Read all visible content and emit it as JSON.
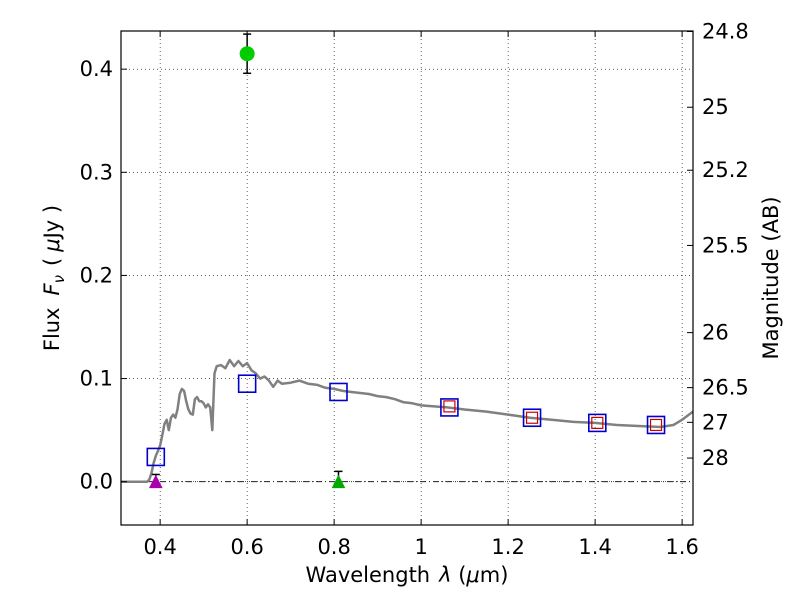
{
  "chart_data": {
    "type": "scatter",
    "xlabel_prefix": "Wavelength",
    "xlabel_var": "λ",
    "xlabel_unit_open": " (",
    "xlabel_unit_mu": "μ",
    "xlabel_unit_rest": "m)",
    "ylabel_prefix": "Flux",
    "ylabel_var": "F",
    "ylabel_sub": "ν",
    "ylabel_unit_open": "(",
    "ylabel_unit_mu": "μ",
    "ylabel_unit_rest": "Jy )",
    "y2label": "Magnitude (AB)",
    "xlim": [
      0.31,
      1.625
    ],
    "ylim": [
      -0.042,
      0.437
    ],
    "xticks": [
      {
        "value": 0.4,
        "label": "0.4"
      },
      {
        "value": 0.6,
        "label": "0.6"
      },
      {
        "value": 0.8,
        "label": "0.8"
      },
      {
        "value": 1.0,
        "label": "1"
      },
      {
        "value": 1.2,
        "label": "1.2"
      },
      {
        "value": 1.4,
        "label": "1.4"
      },
      {
        "value": 1.6,
        "label": "1.6"
      }
    ],
    "yticks": [
      {
        "value": 0.0,
        "label": "0.0"
      },
      {
        "value": 0.1,
        "label": "0.1"
      },
      {
        "value": 0.2,
        "label": "0.2"
      },
      {
        "value": 0.3,
        "label": "0.3"
      },
      {
        "value": 0.4,
        "label": "0.4"
      }
    ],
    "mag_ticks": [
      {
        "value": 24.8,
        "label": "24.8"
      },
      {
        "value": 25.0,
        "label": "25"
      },
      {
        "value": 25.2,
        "label": "25.2"
      },
      {
        "value": 25.5,
        "label": "25.5"
      },
      {
        "value": 26.0,
        "label": "26"
      },
      {
        "value": 26.5,
        "label": "26.5"
      },
      {
        "value": 27.0,
        "label": "27"
      },
      {
        "value": 28.0,
        "label": "28"
      }
    ],
    "grid": true,
    "colors": {
      "model": "#808080",
      "model_points": "#0000cc",
      "observed": "#cc0000",
      "detection": "#00cc00",
      "limit_green": "#00aa00",
      "limit_magenta": "#aa00aa"
    },
    "model_sed": [
      [
        0.31,
        0.0
      ],
      [
        0.36,
        0.0
      ],
      [
        0.37,
        0.0
      ],
      [
        0.375,
        0.002
      ],
      [
        0.38,
        0.008
      ],
      [
        0.385,
        0.018
      ],
      [
        0.39,
        0.025
      ],
      [
        0.395,
        0.03
      ],
      [
        0.4,
        0.035
      ],
      [
        0.405,
        0.045
      ],
      [
        0.41,
        0.056
      ],
      [
        0.415,
        0.06
      ],
      [
        0.42,
        0.05
      ],
      [
        0.425,
        0.062
      ],
      [
        0.43,
        0.065
      ],
      [
        0.435,
        0.062
      ],
      [
        0.44,
        0.07
      ],
      [
        0.445,
        0.085
      ],
      [
        0.45,
        0.09
      ],
      [
        0.455,
        0.088
      ],
      [
        0.46,
        0.078
      ],
      [
        0.465,
        0.07
      ],
      [
        0.47,
        0.066
      ],
      [
        0.475,
        0.065
      ],
      [
        0.48,
        0.08
      ],
      [
        0.485,
        0.082
      ],
      [
        0.49,
        0.078
      ],
      [
        0.495,
        0.078
      ],
      [
        0.5,
        0.076
      ],
      [
        0.505,
        0.072
      ],
      [
        0.51,
        0.075
      ],
      [
        0.515,
        0.072
      ],
      [
        0.52,
        0.05
      ],
      [
        0.525,
        0.105
      ],
      [
        0.53,
        0.112
      ],
      [
        0.54,
        0.113
      ],
      [
        0.55,
        0.11
      ],
      [
        0.56,
        0.118
      ],
      [
        0.57,
        0.112
      ],
      [
        0.58,
        0.117
      ],
      [
        0.59,
        0.112
      ],
      [
        0.6,
        0.115
      ],
      [
        0.61,
        0.108
      ],
      [
        0.62,
        0.105
      ],
      [
        0.63,
        0.1
      ],
      [
        0.64,
        0.102
      ],
      [
        0.65,
        0.098
      ],
      [
        0.66,
        0.092
      ],
      [
        0.67,
        0.098
      ],
      [
        0.68,
        0.095
      ],
      [
        0.7,
        0.096
      ],
      [
        0.72,
        0.098
      ],
      [
        0.74,
        0.095
      ],
      [
        0.76,
        0.094
      ],
      [
        0.78,
        0.091
      ],
      [
        0.8,
        0.09
      ],
      [
        0.82,
        0.088
      ],
      [
        0.84,
        0.087
      ],
      [
        0.86,
        0.086
      ],
      [
        0.88,
        0.085
      ],
      [
        0.9,
        0.083
      ],
      [
        0.92,
        0.082
      ],
      [
        0.94,
        0.08
      ],
      [
        0.96,
        0.077
      ],
      [
        0.98,
        0.076
      ],
      [
        1.0,
        0.074
      ],
      [
        1.03,
        0.073
      ],
      [
        1.06,
        0.072
      ],
      [
        1.1,
        0.07
      ],
      [
        1.15,
        0.068
      ],
      [
        1.2,
        0.065
      ],
      [
        1.25,
        0.062
      ],
      [
        1.3,
        0.06
      ],
      [
        1.35,
        0.058
      ],
      [
        1.4,
        0.057
      ],
      [
        1.45,
        0.055
      ],
      [
        1.5,
        0.054
      ],
      [
        1.55,
        0.053
      ],
      [
        1.58,
        0.055
      ],
      [
        1.6,
        0.06
      ],
      [
        1.625,
        0.068
      ]
    ],
    "model_photometry": [
      {
        "x": 0.39,
        "y": 0.024
      },
      {
        "x": 0.6,
        "y": 0.095
      },
      {
        "x": 0.81,
        "y": 0.087
      },
      {
        "x": 1.065,
        "y": 0.072
      },
      {
        "x": 1.255,
        "y": 0.062
      },
      {
        "x": 1.405,
        "y": 0.057
      },
      {
        "x": 1.54,
        "y": 0.055
      }
    ],
    "observed_photometry": [
      {
        "x": 1.065,
        "y": 0.073
      },
      {
        "x": 1.255,
        "y": 0.062
      },
      {
        "x": 1.405,
        "y": 0.057
      },
      {
        "x": 1.54,
        "y": 0.055
      }
    ],
    "detections": [
      {
        "x": 0.6,
        "y": 0.415,
        "err": 0.019
      }
    ],
    "upper_limits": [
      {
        "x": 0.39,
        "y": 0.0,
        "err": 0.007,
        "color": "magenta"
      },
      {
        "x": 0.81,
        "y": 0.0,
        "err": 0.01,
        "color": "green"
      }
    ]
  }
}
